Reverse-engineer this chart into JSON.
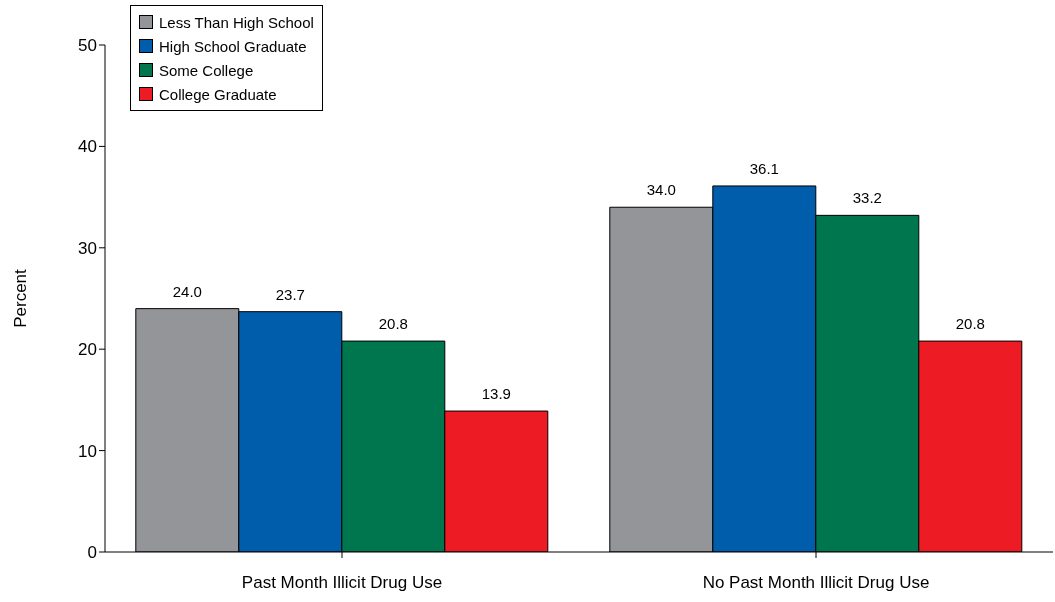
{
  "chart_data": {
    "type": "bar",
    "ylabel": "Percent",
    "categories": [
      "Past Month Illicit Drug Use",
      "No Past Month Illicit Drug Use"
    ],
    "series": [
      {
        "name": "Less Than High School",
        "color": "#939598",
        "values": [
          24.0,
          34.0
        ],
        "value_labels": [
          "24.0",
          "34.0"
        ]
      },
      {
        "name": "High School Graduate",
        "color": "#005dab",
        "values": [
          23.7,
          36.1
        ],
        "value_labels": [
          "23.7",
          "36.1"
        ]
      },
      {
        "name": "Some College",
        "color": "#00764f",
        "values": [
          20.8,
          33.2
        ],
        "value_labels": [
          "20.8",
          "33.2"
        ]
      },
      {
        "name": "College Graduate",
        "color": "#ed1c24",
        "values": [
          13.9,
          20.8
        ],
        "value_labels": [
          "13.9",
          "20.8"
        ]
      }
    ],
    "ylim": [
      0,
      50
    ],
    "yticks": [
      0,
      10,
      20,
      30,
      40,
      50
    ],
    "grid": false,
    "legend": "top left"
  }
}
